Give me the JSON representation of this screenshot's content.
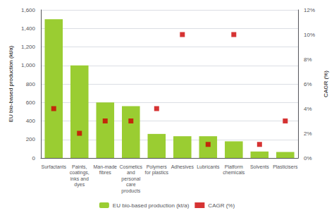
{
  "chart_data": {
    "type": "bar",
    "categories": [
      "Surfactants",
      "Paints,\ncoatings,\ninks and\ndyes",
      "Man-made\nfibres",
      "Cosmetics\nand\npersonal\ncare\nproducts",
      "Polymers\nfor plastics",
      "Adhesives",
      "Lubricants",
      "Platform\nchemicals",
      "Solvents",
      "Plasticisers"
    ],
    "series": [
      {
        "name": "EU bio-based production (kt/a)",
        "type": "bar",
        "color": "#9ACD32",
        "values": [
          1500,
          1000,
          600,
          560,
          260,
          235,
          235,
          180,
          70,
          65
        ]
      },
      {
        "name": "CAGR (%)",
        "type": "scatter",
        "axis": "y2",
        "color": "#CC0000",
        "marker": "square",
        "values": [
          4.0,
          2.0,
          3.0,
          3.0,
          4.0,
          10.0,
          1.1,
          10.0,
          1.1,
          3.0
        ]
      }
    ],
    "ylabel": "EU bio-based production (kt/a)",
    "y2label": "CAGR (%)",
    "ylim": [
      0,
      1600
    ],
    "yticks": [
      0,
      200,
      400,
      600,
      800,
      {
        "value": 1000,
        "label": "1,000"
      },
      {
        "value": 1200,
        "label": "1,200"
      },
      {
        "value": 1400,
        "label": "1,400"
      },
      {
        "value": 1600,
        "label": "1,600"
      }
    ],
    "y2lim": [
      0,
      12
    ],
    "y2ticks": [
      {
        "value": 0,
        "label": "0%"
      },
      {
        "value": 2,
        "label": "2%"
      },
      {
        "value": 4,
        "label": "4%"
      },
      {
        "value": 6,
        "label": "6%"
      },
      {
        "value": 8,
        "label": "8%"
      },
      {
        "value": 10,
        "label": "10%"
      },
      {
        "value": 12,
        "label": "12%"
      }
    ],
    "grid": true,
    "legend": "bottom"
  }
}
